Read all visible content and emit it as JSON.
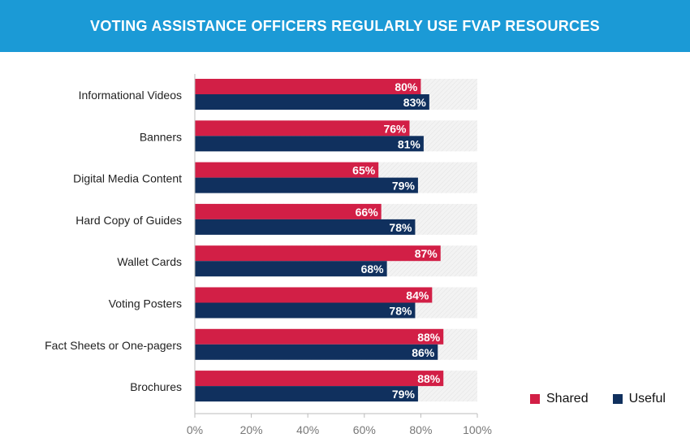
{
  "chart_data": {
    "type": "bar",
    "orientation": "horizontal",
    "title": "VOTING ASSISTANCE OFFICERS REGULARLY USE FVAP RESOURCES",
    "categories": [
      "Informational Videos",
      "Banners",
      "Digital Media Content",
      "Hard Copy of Guides",
      "Wallet Cards",
      "Voting Posters",
      "Fact Sheets or One-pagers",
      "Brochures"
    ],
    "series": [
      {
        "name": "Shared",
        "values": [
          80,
          76,
          65,
          66,
          87,
          84,
          88,
          88
        ],
        "labels": [
          "80%",
          "76%",
          "65%",
          "66%",
          "87%",
          "84%",
          "88%",
          "88%"
        ]
      },
      {
        "name": "Useful",
        "values": [
          83,
          81,
          79,
          78,
          68,
          78,
          86,
          79
        ],
        "labels": [
          "83%",
          "81%",
          "79%",
          "78%",
          "68%",
          "78%",
          "86%",
          "79%"
        ]
      }
    ],
    "xlim": [
      0,
      100
    ],
    "xticks": [
      "0%",
      "20%",
      "40%",
      "60%",
      "80%",
      "100%"
    ],
    "legend": "bottom-right",
    "grid": false
  },
  "colors": {
    "header": "#1b9ad6",
    "shared": "#d21f46",
    "useful": "#10305e",
    "track": "#eeeeee"
  }
}
